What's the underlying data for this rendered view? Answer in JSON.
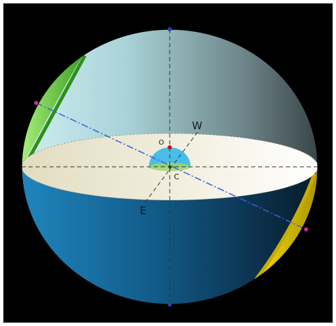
{
  "diagram": {
    "labels": {
      "west": "W",
      "east": "E",
      "observer": "O",
      "center": "C"
    },
    "colors": {
      "background": "#000000",
      "upper_hemisphere_light": "#bfe6ea",
      "upper_hemisphere_dark": "#3d4a4f",
      "lower_hemisphere_light": "#1a7ab0",
      "lower_hemisphere_dark": "#0b2438",
      "horizon_plane_left": "#e9e3c8",
      "horizon_plane_right": "#fbf9f0",
      "green_band": "#7fd65a",
      "yellow_band": "#e6c800",
      "celestial_equator_line": "#3b5fd6",
      "pole_marker": "#c030a0",
      "small_dome": "#35b8e8",
      "observer_marker": "#d01010"
    }
  }
}
